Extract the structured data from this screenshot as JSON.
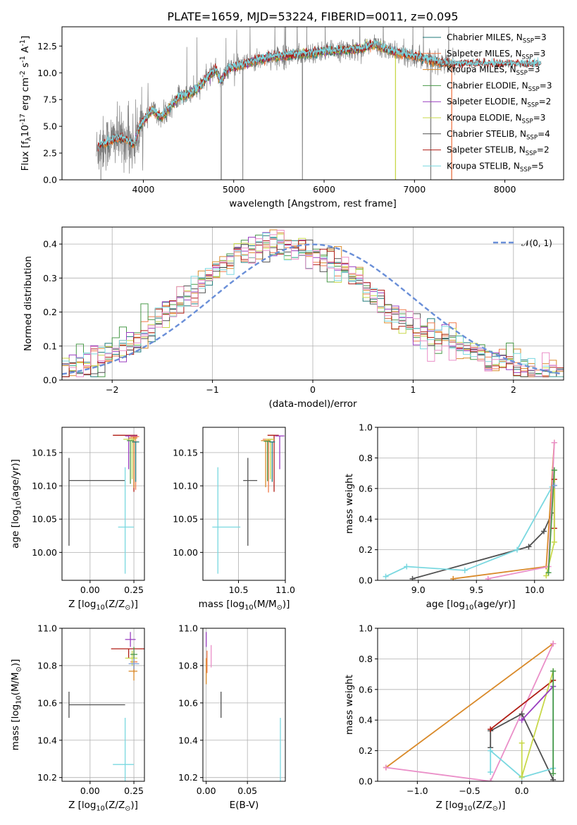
{
  "chart_data": [
    {
      "type": "line",
      "id": "spectrum",
      "title": "PLATE=1659, MJD=53224, FIBERID=0011, z=0.095",
      "xlabel": "wavelength [Angstrom, rest frame]",
      "ylabel": "Flux [f$_\\lambda$10$^{-17}$ erg cm$^{-2}$ s$^{-1}$ A$^{-1}$]",
      "xlim": [
        3100,
        8650
      ],
      "ylim": [
        0,
        14.3
      ],
      "xticks": [
        4000,
        5000,
        6000,
        7000,
        8000
      ],
      "yticks": [
        0.0,
        2.5,
        5.0,
        7.5,
        10.0,
        12.5
      ],
      "grid": false,
      "legend_position": "right",
      "data_color": "#808080",
      "data_anchor": {
        "x": [
          3480,
          3520,
          3600,
          3700,
          3800,
          3900,
          3950,
          4000,
          4100,
          4200,
          4300,
          4400,
          4500,
          4600,
          4700,
          4800,
          4860,
          4950,
          5050,
          5200,
          5400,
          5600,
          5800,
          6000,
          6200,
          6400,
          6563,
          6700,
          6900,
          7100,
          7200,
          7300,
          7450
        ],
        "y": [
          2.6,
          3.2,
          3.5,
          3.9,
          3.8,
          3.3,
          4.8,
          5.5,
          6.5,
          5.8,
          6.8,
          7.8,
          8.0,
          8.5,
          9.5,
          10.3,
          9.2,
          10.5,
          10.6,
          11.0,
          11.5,
          11.6,
          11.8,
          12.0,
          12.1,
          12.2,
          12.7,
          12.1,
          11.7,
          11.4,
          11.1,
          10.9,
          10.8
        ]
      },
      "models": [
        {
          "name": "Chabrier MILES, N$_{SSP}$=3",
          "color": "#1f7a7a",
          "x_range": [
            3540,
            7410
          ]
        },
        {
          "name": "Salpeter MILES, N$_{SSP}$=3",
          "color": "#f07848",
          "x_range": [
            3540,
            7410
          ]
        },
        {
          "name": "Kroupa MILES, N$_{SSP}$=3",
          "color": "#d98a2a",
          "x_range": [
            3540,
            7410
          ]
        },
        {
          "name": "Chabrier ELODIE, N$_{SSP}$=3",
          "color": "#4a9a4a",
          "x_range": [
            3900,
            6800
          ]
        },
        {
          "name": "Salpeter ELODIE, N$_{SSP}$=2",
          "color": "#9a3fc0",
          "x_range": [
            3900,
            6800
          ]
        },
        {
          "name": "Kroupa ELODIE, N$_{SSP}$=3",
          "color": "#c8d84a",
          "x_range": [
            3900,
            6800
          ]
        },
        {
          "name": "Chabrier STELIB, N$_{SSP}$=4",
          "color": "#505050",
          "x_range": [
            3500,
            8400
          ]
        },
        {
          "name": "Salpeter STELIB, N$_{SSP}$=2",
          "color": "#b01c14",
          "x_range": [
            3500,
            8400
          ]
        },
        {
          "name": "Kroupa STELIB, N$_{SSP}$=5",
          "color": "#7ad8e0",
          "x_range": [
            3500,
            8400
          ]
        }
      ]
    },
    {
      "type": "line",
      "id": "residuals",
      "xlabel": "(data-model)/error",
      "ylabel": "Normed distribution",
      "xlim": [
        -2.5,
        2.5
      ],
      "ylim": [
        0,
        0.45
      ],
      "xticks": [
        -2,
        -1,
        0,
        1,
        2
      ],
      "yticks": [
        0.0,
        0.1,
        0.2,
        0.3,
        0.4
      ],
      "grid": true,
      "legend_position": "top-right",
      "reference": {
        "name": "$\\mathcal{N}(0,1)$",
        "color": "#6a8fd8",
        "style": "dashed"
      },
      "histogram_base": [
        0.045,
        0.05,
        0.052,
        0.055,
        0.058,
        0.063,
        0.07,
        0.08,
        0.092,
        0.105,
        0.12,
        0.14,
        0.16,
        0.18,
        0.19,
        0.205,
        0.22,
        0.24,
        0.26,
        0.28,
        0.3,
        0.32,
        0.34,
        0.355,
        0.37,
        0.38,
        0.385,
        0.39,
        0.395,
        0.4,
        0.4,
        0.395,
        0.39,
        0.385,
        0.38,
        0.375,
        0.365,
        0.35,
        0.335,
        0.32,
        0.305,
        0.29,
        0.27,
        0.25,
        0.23,
        0.21,
        0.19,
        0.175,
        0.16,
        0.15,
        0.14,
        0.13,
        0.125,
        0.12,
        0.115,
        0.105,
        0.09,
        0.08,
        0.07,
        0.06,
        0.055,
        0.05,
        0.045,
        0.04,
        0.035,
        0.03,
        0.03,
        0.03,
        0.03,
        0.03
      ]
    },
    {
      "type": "scatter",
      "id": "age-vs-Z",
      "xlabel": "Z [log$_{10}$(Z/Z$_\\odot$)]",
      "ylabel": "age  [log$_{10}$(age/yr)]",
      "xlim": [
        -0.16,
        0.31
      ],
      "ylim": [
        9.958,
        10.188
      ],
      "xticks": [
        0.0,
        0.25
      ],
      "yticks": [
        10.0,
        10.05,
        10.1,
        10.15
      ],
      "grid": true,
      "points": [
        {
          "color": "#505050",
          "x": -0.12,
          "xerr": [
            0.0,
            0.32
          ],
          "y": 10.108,
          "yerr": [
            0.098,
            0.034
          ]
        },
        {
          "color": "#7ad8e0",
          "x": 0.2,
          "xerr": [
            0.04,
            0.05
          ],
          "y": 10.038,
          "yerr": [
            0.07,
            0.09
          ]
        },
        {
          "color": "#b01c14",
          "x": 0.25,
          "xerr": [
            0.12,
            0.02
          ],
          "y": 10.176,
          "yerr": [
            0.085,
            0.0
          ]
        },
        {
          "color": "#9a3fc0",
          "x": 0.22,
          "xerr": [
            0.02,
            0.05
          ],
          "y": 10.175,
          "yerr": [
            0.05,
            0.0
          ]
        },
        {
          "color": "#f07848",
          "x": 0.26,
          "xerr": [
            0.03,
            0.02
          ],
          "y": 10.174,
          "yerr": [
            0.08,
            0.0
          ]
        },
        {
          "color": "#d98a2a",
          "x": 0.25,
          "xerr": [
            0.03,
            0.02
          ],
          "y": 10.172,
          "yerr": [
            0.075,
            0.0
          ]
        },
        {
          "color": "#c8d84a",
          "x": 0.24,
          "xerr": [
            0.05,
            0.02
          ],
          "y": 10.17,
          "yerr": [
            0.06,
            0.0
          ]
        },
        {
          "color": "#4a9a4a",
          "x": 0.23,
          "xerr": [
            0.02,
            0.02
          ],
          "y": 10.168,
          "yerr": [
            0.065,
            0.0
          ]
        },
        {
          "color": "#1f7a7a",
          "x": 0.26,
          "xerr": [
            0.02,
            0.02
          ],
          "y": 10.166,
          "yerr": [
            0.06,
            0.0
          ]
        }
      ]
    },
    {
      "type": "scatter",
      "id": "age-vs-mass",
      "xlabel": "mass [log$_{10}$(M/M$_\\odot$)]",
      "ylabel": "",
      "xlim": [
        10.12,
        11.0
      ],
      "ylim": [
        9.958,
        10.188
      ],
      "xticks": [
        10.5,
        11.0
      ],
      "yticks": [
        10.0,
        10.05,
        10.1,
        10.15
      ],
      "grid": true,
      "points": [
        {
          "color": "#505050",
          "x": 10.6,
          "xerr": [
            0.05,
            0.1
          ],
          "y": 10.108,
          "yerr": [
            0.098,
            0.034
          ]
        },
        {
          "color": "#7ad8e0",
          "x": 10.28,
          "xerr": [
            0.06,
            0.24
          ],
          "y": 10.038,
          "yerr": [
            0.07,
            0.09
          ]
        },
        {
          "color": "#b01c14",
          "x": 10.88,
          "xerr": [
            0.07,
            0.05
          ],
          "y": 10.176,
          "yerr": [
            0.085,
            0.0
          ]
        },
        {
          "color": "#9a3fc0",
          "x": 10.94,
          "xerr": [
            0.05,
            0.05
          ],
          "y": 10.175,
          "yerr": [
            0.05,
            0.0
          ]
        },
        {
          "color": "#f07848",
          "x": 10.82,
          "xerr": [
            0.06,
            0.06
          ],
          "y": 10.17,
          "yerr": [
            0.08,
            0.0
          ]
        },
        {
          "color": "#d98a2a",
          "x": 10.79,
          "xerr": [
            0.05,
            0.05
          ],
          "y": 10.168,
          "yerr": [
            0.07,
            0.0
          ]
        },
        {
          "color": "#c8d84a",
          "x": 10.84,
          "xerr": [
            0.05,
            0.04
          ],
          "y": 10.17,
          "yerr": [
            0.06,
            0.0
          ]
        },
        {
          "color": "#4a9a4a",
          "x": 10.81,
          "xerr": [
            0.04,
            0.03
          ],
          "y": 10.167,
          "yerr": [
            0.06,
            0.0
          ]
        },
        {
          "color": "#1f7a7a",
          "x": 10.86,
          "xerr": [
            0.03,
            0.03
          ],
          "y": 10.166,
          "yerr": [
            0.06,
            0.0
          ]
        }
      ]
    },
    {
      "type": "line",
      "id": "massweight-vs-age",
      "xlabel": "age  [log$_{10}$(age/yr)]",
      "ylabel": "mass weight",
      "xlim": [
        8.65,
        10.25
      ],
      "ylim": [
        0,
        1
      ],
      "xticks": [
        9.0,
        9.5,
        10.0
      ],
      "yticks": [
        0.0,
        0.2,
        0.4,
        0.6,
        0.8,
        1.0
      ],
      "grid": true,
      "series": [
        {
          "color": "#505050",
          "points": [
            [
              8.95,
              0.01
            ],
            [
              9.95,
              0.22
            ],
            [
              10.08,
              0.32
            ],
            [
              10.15,
              0.44
            ]
          ]
        },
        {
          "color": "#7ad8e0",
          "points": [
            [
              8.72,
              0.025
            ],
            [
              8.9,
              0.09
            ],
            [
              9.4,
              0.065
            ],
            [
              9.85,
              0.2
            ],
            [
              10.15,
              0.61
            ],
            [
              10.17,
              0.62
            ]
          ]
        },
        {
          "color": "#d98a2a",
          "points": [
            [
              9.3,
              0.01
            ],
            [
              10.1,
              0.09
            ],
            [
              10.17,
              0.9
            ]
          ]
        },
        {
          "color": "#ea8fc8",
          "points": [
            [
              9.6,
              0.01
            ],
            [
              10.12,
              0.09
            ],
            [
              10.17,
              0.9
            ]
          ]
        },
        {
          "color": "#b01c14",
          "points": [
            [
              10.17,
              0.34
            ],
            [
              10.17,
              0.66
            ]
          ]
        },
        {
          "color": "#c8d84a",
          "points": [
            [
              10.1,
              0.03
            ],
            [
              10.17,
              0.25
            ],
            [
              10.17,
              0.72
            ]
          ]
        },
        {
          "color": "#4a9a4a",
          "points": [
            [
              10.12,
              0.05
            ],
            [
              10.17,
              0.72
            ]
          ]
        },
        {
          "color": "#7fa0d8",
          "points": [
            [
              10.17,
              0.62
            ]
          ]
        }
      ]
    },
    {
      "type": "scatter",
      "id": "mass-vs-Z",
      "xlabel": "Z [log$_{10}$(Z/Z$_\\odot$)]",
      "ylabel": "mass [log$_{10}$(M/M$_\\odot$)]",
      "xlim": [
        -0.16,
        0.31
      ],
      "ylim": [
        10.18,
        11.0
      ],
      "xticks": [
        0.0,
        0.25
      ],
      "yticks": [
        10.2,
        10.4,
        10.6,
        10.8,
        11.0
      ],
      "grid": true,
      "points": [
        {
          "color": "#505050",
          "x": -0.12,
          "xerr": [
            0.0,
            0.32
          ],
          "y": 10.59,
          "yerr": [
            0.07,
            0.07
          ]
        },
        {
          "color": "#7ad8e0",
          "x": 0.2,
          "xerr": [
            0.07,
            0.05
          ],
          "y": 10.27,
          "yerr": [
            0.1,
            0.25
          ]
        },
        {
          "color": "#b01c14",
          "x": 0.22,
          "xerr": [
            0.1,
            0.09
          ],
          "y": 10.89,
          "yerr": [
            0.05,
            0.0
          ]
        },
        {
          "color": "#9a3fc0",
          "x": 0.23,
          "xerr": [
            0.03,
            0.03
          ],
          "y": 10.94,
          "yerr": [
            0.04,
            0.04
          ]
        },
        {
          "color": "#f07848",
          "x": 0.25,
          "xerr": [
            0.02,
            0.02
          ],
          "y": 10.82,
          "yerr": [
            0.06,
            0.06
          ]
        },
        {
          "color": "#d98a2a",
          "x": 0.25,
          "xerr": [
            0.03,
            0.02
          ],
          "y": 10.77,
          "yerr": [
            0.05,
            0.05
          ]
        },
        {
          "color": "#c8d84a",
          "x": 0.24,
          "xerr": [
            0.04,
            0.03
          ],
          "y": 10.84,
          "yerr": [
            0.04,
            0.04
          ]
        },
        {
          "color": "#4a9a4a",
          "x": 0.25,
          "xerr": [
            0.02,
            0.02
          ],
          "y": 10.86,
          "yerr": [
            0.04,
            0.04
          ]
        },
        {
          "color": "#7fa0d8",
          "x": 0.25,
          "xerr": [
            0.03,
            0.03
          ],
          "y": 10.81,
          "yerr": [
            0.03,
            0.03
          ]
        }
      ]
    },
    {
      "type": "scatter",
      "id": "mass-vs-ebv",
      "xlabel": "E(B-V)",
      "ylabel": "",
      "xlim": [
        -0.004,
        0.096
      ],
      "ylim": [
        10.18,
        11.0
      ],
      "xticks": [
        0.0,
        0.05
      ],
      "yticks": [
        10.2,
        10.4,
        10.6,
        10.8,
        11.0
      ],
      "grid": true,
      "points": [
        {
          "color": "#505050",
          "x": 0.018,
          "xerr": [
            0,
            0
          ],
          "y": 10.59,
          "yerr": [
            0.07,
            0.07
          ]
        },
        {
          "color": "#7ad8e0",
          "x": 0.09,
          "xerr": [
            0,
            0
          ],
          "y": 10.27,
          "yerr": [
            0.1,
            0.25
          ]
        },
        {
          "color": "#9a3fc0",
          "x": 0.0,
          "xerr": [
            0,
            0
          ],
          "y": 10.94,
          "yerr": [
            0.04,
            0.04
          ]
        },
        {
          "color": "#ea8fc8",
          "x": 0.006,
          "xerr": [
            0,
            0
          ],
          "y": 10.85,
          "yerr": [
            0.06,
            0.06
          ]
        },
        {
          "color": "#f07848",
          "x": 0.001,
          "xerr": [
            0,
            0
          ],
          "y": 10.82,
          "yerr": [
            0.06,
            0.06
          ]
        },
        {
          "color": "#d98a2a",
          "x": 0.0,
          "xerr": [
            0,
            0
          ],
          "y": 10.77,
          "yerr": [
            0.07,
            0.07
          ]
        }
      ]
    },
    {
      "type": "line",
      "id": "massweight-vs-Z",
      "xlabel": "Z [log$_{10}$(Z/Z$_\\odot$)]",
      "ylabel": "mass weight",
      "xlim": [
        -1.38,
        0.4
      ],
      "ylim": [
        0,
        1
      ],
      "xticks": [
        -1.0,
        -0.5,
        0.0
      ],
      "yticks": [
        0.0,
        0.2,
        0.4,
        0.6,
        0.8,
        1.0
      ],
      "grid": true,
      "series": [
        {
          "color": "#d98a2a",
          "points": [
            [
              -1.3,
              0.09
            ],
            [
              0.3,
              0.9
            ]
          ]
        },
        {
          "color": "#ea8fc8",
          "points": [
            [
              -1.3,
              0.09
            ],
            [
              -0.3,
              0.0
            ],
            [
              0.3,
              0.9
            ]
          ]
        },
        {
          "color": "#505050",
          "points": [
            [
              -0.3,
              0.22
            ],
            [
              -0.3,
              0.33
            ],
            [
              0.0,
              0.44
            ],
            [
              0.3,
              0.01
            ]
          ]
        },
        {
          "color": "#7ad8e0",
          "points": [
            [
              -0.3,
              0.06
            ],
            [
              -0.3,
              0.2
            ],
            [
              0.0,
              0.025
            ],
            [
              0.3,
              0.085
            ],
            [
              0.3,
              0.62
            ]
          ]
        },
        {
          "color": "#b01c14",
          "points": [
            [
              -0.3,
              0.34
            ],
            [
              0.3,
              0.66
            ]
          ]
        },
        {
          "color": "#c8d84a",
          "points": [
            [
              0.0,
              0.25
            ],
            [
              0.0,
              0.03
            ],
            [
              0.3,
              0.72
            ]
          ]
        },
        {
          "color": "#9a3fc0",
          "points": [
            [
              0.0,
              0.4
            ],
            [
              0.3,
              0.62
            ]
          ]
        },
        {
          "color": "#4a9a4a",
          "points": [
            [
              0.3,
              0.72
            ],
            [
              0.3,
              0.05
            ]
          ]
        }
      ]
    }
  ]
}
